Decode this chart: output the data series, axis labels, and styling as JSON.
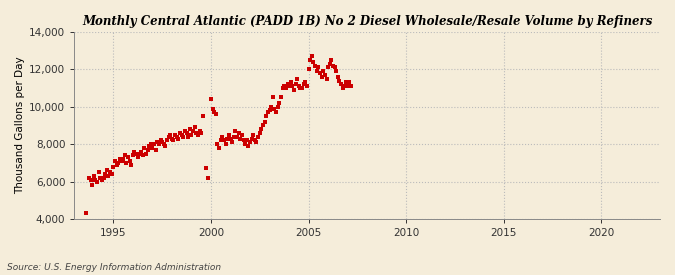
{
  "title": "Monthly Central Atlantic (PADD 1B) No 2 Diesel Wholesale/Resale Volume by Refiners",
  "ylabel": "Thousand Gallons per Day",
  "source": "Source: U.S. Energy Information Administration",
  "background_color": "#F5EDDA",
  "dot_color": "#CC0000",
  "xlim": [
    1993.0,
    2023.0
  ],
  "ylim": [
    4000,
    14000
  ],
  "yticks": [
    4000,
    6000,
    8000,
    10000,
    12000,
    14000
  ],
  "xticks": [
    1995,
    2000,
    2005,
    2010,
    2015,
    2020
  ],
  "scatter_data": [
    [
      1993.6,
      4300
    ],
    [
      1993.75,
      6200
    ],
    [
      1993.83,
      6100
    ],
    [
      1993.92,
      5800
    ],
    [
      1994.0,
      6300
    ],
    [
      1994.08,
      6100
    ],
    [
      1994.17,
      6000
    ],
    [
      1994.25,
      6500
    ],
    [
      1994.33,
      6200
    ],
    [
      1994.42,
      6100
    ],
    [
      1994.5,
      6200
    ],
    [
      1994.58,
      6400
    ],
    [
      1994.67,
      6600
    ],
    [
      1994.75,
      6300
    ],
    [
      1994.83,
      6500
    ],
    [
      1994.92,
      6400
    ],
    [
      1995.0,
      6800
    ],
    [
      1995.08,
      7100
    ],
    [
      1995.17,
      6900
    ],
    [
      1995.25,
      7000
    ],
    [
      1995.33,
      7200
    ],
    [
      1995.42,
      7100
    ],
    [
      1995.5,
      7200
    ],
    [
      1995.58,
      7400
    ],
    [
      1995.67,
      7000
    ],
    [
      1995.75,
      7300
    ],
    [
      1995.83,
      7100
    ],
    [
      1995.92,
      6900
    ],
    [
      1996.0,
      7400
    ],
    [
      1996.08,
      7600
    ],
    [
      1996.17,
      7500
    ],
    [
      1996.25,
      7300
    ],
    [
      1996.33,
      7500
    ],
    [
      1996.42,
      7600
    ],
    [
      1996.5,
      7400
    ],
    [
      1996.58,
      7800
    ],
    [
      1996.67,
      7500
    ],
    [
      1996.75,
      7700
    ],
    [
      1996.83,
      7900
    ],
    [
      1996.92,
      8000
    ],
    [
      1997.0,
      7800
    ],
    [
      1997.08,
      8000
    ],
    [
      1997.17,
      7700
    ],
    [
      1997.25,
      8100
    ],
    [
      1997.33,
      8000
    ],
    [
      1997.42,
      8200
    ],
    [
      1997.5,
      8100
    ],
    [
      1997.58,
      8000
    ],
    [
      1997.67,
      7900
    ],
    [
      1997.75,
      8200
    ],
    [
      1997.83,
      8400
    ],
    [
      1997.92,
      8500
    ],
    [
      1998.0,
      8300
    ],
    [
      1998.08,
      8200
    ],
    [
      1998.17,
      8500
    ],
    [
      1998.25,
      8400
    ],
    [
      1998.33,
      8300
    ],
    [
      1998.42,
      8600
    ],
    [
      1998.5,
      8500
    ],
    [
      1998.58,
      8400
    ],
    [
      1998.67,
      8700
    ],
    [
      1998.75,
      8600
    ],
    [
      1998.83,
      8400
    ],
    [
      1998.92,
      8800
    ],
    [
      1999.0,
      8500
    ],
    [
      1999.08,
      8700
    ],
    [
      1999.17,
      8900
    ],
    [
      1999.25,
      8600
    ],
    [
      1999.33,
      8500
    ],
    [
      1999.42,
      8700
    ],
    [
      1999.5,
      8600
    ],
    [
      1999.58,
      9500
    ],
    [
      1999.75,
      6700
    ],
    [
      1999.83,
      6200
    ],
    [
      2000.0,
      10400
    ],
    [
      2000.08,
      9900
    ],
    [
      2000.17,
      9700
    ],
    [
      2000.25,
      9600
    ],
    [
      2000.33,
      8000
    ],
    [
      2000.42,
      7800
    ],
    [
      2000.5,
      8200
    ],
    [
      2000.58,
      8400
    ],
    [
      2000.67,
      8200
    ],
    [
      2000.75,
      8000
    ],
    [
      2000.83,
      8300
    ],
    [
      2000.92,
      8500
    ],
    [
      2001.0,
      8300
    ],
    [
      2001.08,
      8100
    ],
    [
      2001.17,
      8400
    ],
    [
      2001.25,
      8700
    ],
    [
      2001.33,
      8400
    ],
    [
      2001.42,
      8600
    ],
    [
      2001.5,
      8300
    ],
    [
      2001.58,
      8500
    ],
    [
      2001.67,
      8200
    ],
    [
      2001.75,
      8000
    ],
    [
      2001.83,
      8200
    ],
    [
      2001.92,
      7900
    ],
    [
      2002.0,
      8100
    ],
    [
      2002.08,
      8300
    ],
    [
      2002.17,
      8500
    ],
    [
      2002.25,
      8200
    ],
    [
      2002.33,
      8100
    ],
    [
      2002.42,
      8400
    ],
    [
      2002.5,
      8600
    ],
    [
      2002.58,
      8800
    ],
    [
      2002.67,
      9000
    ],
    [
      2002.75,
      9200
    ],
    [
      2002.83,
      9500
    ],
    [
      2002.92,
      9700
    ],
    [
      2003.0,
      9800
    ],
    [
      2003.08,
      10000
    ],
    [
      2003.17,
      10500
    ],
    [
      2003.25,
      9900
    ],
    [
      2003.33,
      9700
    ],
    [
      2003.42,
      10000
    ],
    [
      2003.5,
      10200
    ],
    [
      2003.58,
      10500
    ],
    [
      2003.67,
      11000
    ],
    [
      2003.75,
      11100
    ],
    [
      2003.83,
      11000
    ],
    [
      2003.92,
      11200
    ],
    [
      2004.0,
      11100
    ],
    [
      2004.08,
      11300
    ],
    [
      2004.17,
      11100
    ],
    [
      2004.25,
      10900
    ],
    [
      2004.33,
      11200
    ],
    [
      2004.42,
      11500
    ],
    [
      2004.5,
      11100
    ],
    [
      2004.58,
      11000
    ],
    [
      2004.67,
      11000
    ],
    [
      2004.75,
      11200
    ],
    [
      2004.83,
      11300
    ],
    [
      2004.92,
      11100
    ],
    [
      2005.0,
      12000
    ],
    [
      2005.08,
      12500
    ],
    [
      2005.17,
      12700
    ],
    [
      2005.25,
      12400
    ],
    [
      2005.33,
      12200
    ],
    [
      2005.42,
      11900
    ],
    [
      2005.5,
      12100
    ],
    [
      2005.58,
      11800
    ],
    [
      2005.67,
      11600
    ],
    [
      2005.75,
      11900
    ],
    [
      2005.83,
      11700
    ],
    [
      2005.92,
      11500
    ],
    [
      2006.0,
      12100
    ],
    [
      2006.08,
      12300
    ],
    [
      2006.17,
      12500
    ],
    [
      2006.25,
      12200
    ],
    [
      2006.33,
      12100
    ],
    [
      2006.42,
      11900
    ],
    [
      2006.5,
      11600
    ],
    [
      2006.58,
      11400
    ],
    [
      2006.67,
      11200
    ],
    [
      2006.75,
      11000
    ],
    [
      2006.83,
      11100
    ],
    [
      2006.92,
      11300
    ],
    [
      2007.0,
      11100
    ],
    [
      2007.08,
      11300
    ],
    [
      2007.17,
      11100
    ]
  ]
}
